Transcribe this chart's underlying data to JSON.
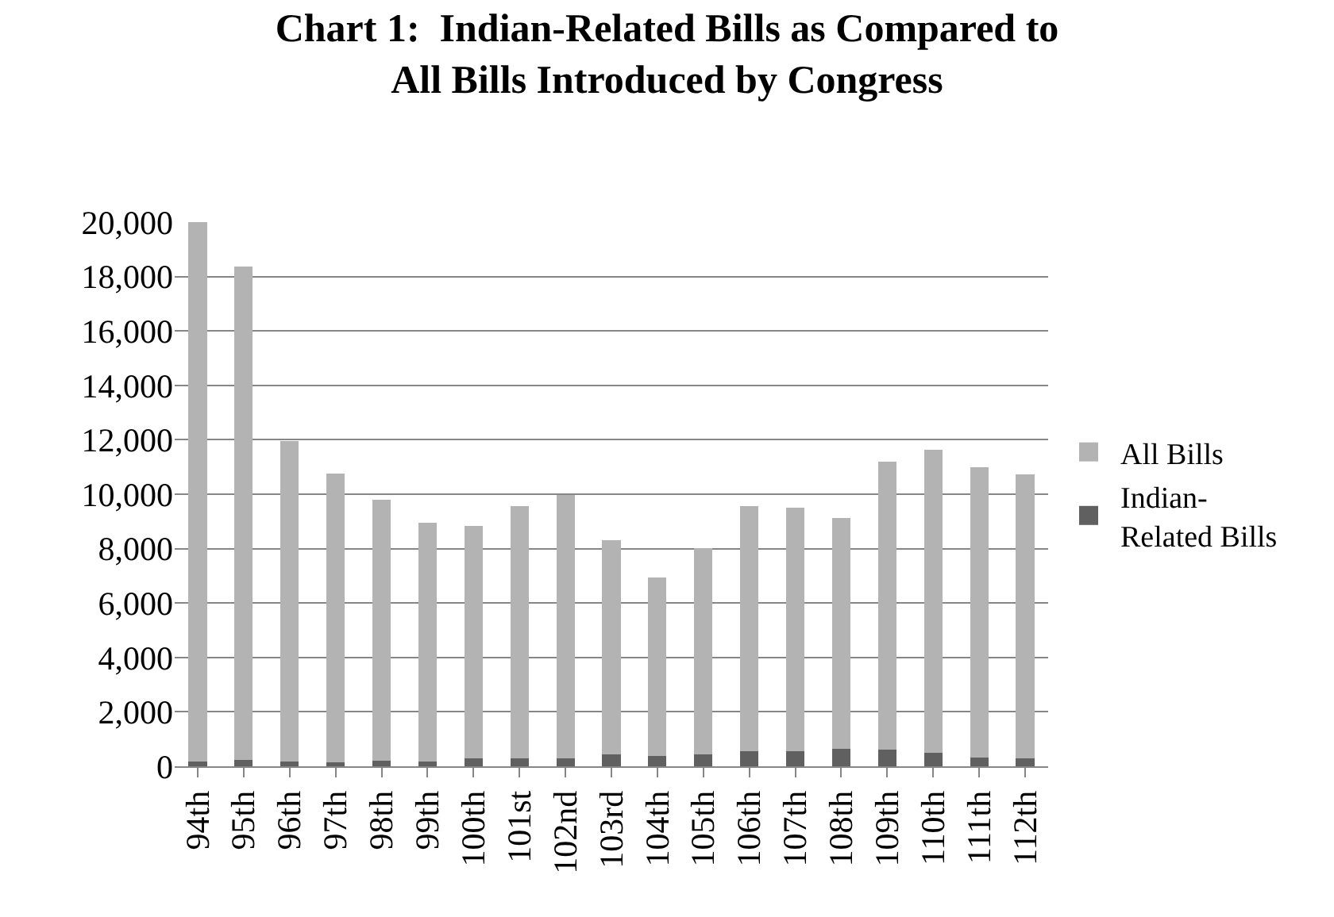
{
  "chart_data": {
    "type": "bar",
    "title": "Chart 1:  Indian-Related Bills as Compared to\nAll Bills Introduced by Congress",
    "categories": [
      "94th",
      "95th",
      "96th",
      "97th",
      "98th",
      "99th",
      "100th",
      "101st",
      "102nd",
      "103rd",
      "104th",
      "105th",
      "106th",
      "107th",
      "108th",
      "109th",
      "110th",
      "111th",
      "112th"
    ],
    "stacked": true,
    "series": [
      {
        "name": "Indian-Related Bills",
        "color": "#606060",
        "values": [
          180,
          240,
          180,
          140,
          200,
          180,
          280,
          280,
          300,
          440,
          380,
          440,
          560,
          560,
          640,
          600,
          500,
          320,
          280
        ]
      },
      {
        "name": "All Bills",
        "color": "#b3b3b3",
        "values": [
          19820,
          18130,
          11760,
          10610,
          9590,
          8760,
          8540,
          9270,
          9670,
          7880,
          6550,
          7580,
          8990,
          8950,
          8490,
          10600,
          11120,
          10670,
          10450
        ]
      }
    ],
    "ylim": [
      0,
      20000
    ],
    "yticks": [
      {
        "value": 0,
        "label": "0"
      },
      {
        "value": 2000,
        "label": "2,000"
      },
      {
        "value": 4000,
        "label": "4,000"
      },
      {
        "value": 6000,
        "label": "6,000"
      },
      {
        "value": 8000,
        "label": "8,000"
      },
      {
        "value": 10000,
        "label": "10,000"
      },
      {
        "value": 12000,
        "label": "12,000"
      },
      {
        "value": 14000,
        "label": "14,000"
      },
      {
        "value": 16000,
        "label": "16,000"
      },
      {
        "value": 18000,
        "label": "18,000"
      },
      {
        "value": 20000,
        "label": "20,000"
      }
    ],
    "grid": "y",
    "legend": "right"
  }
}
